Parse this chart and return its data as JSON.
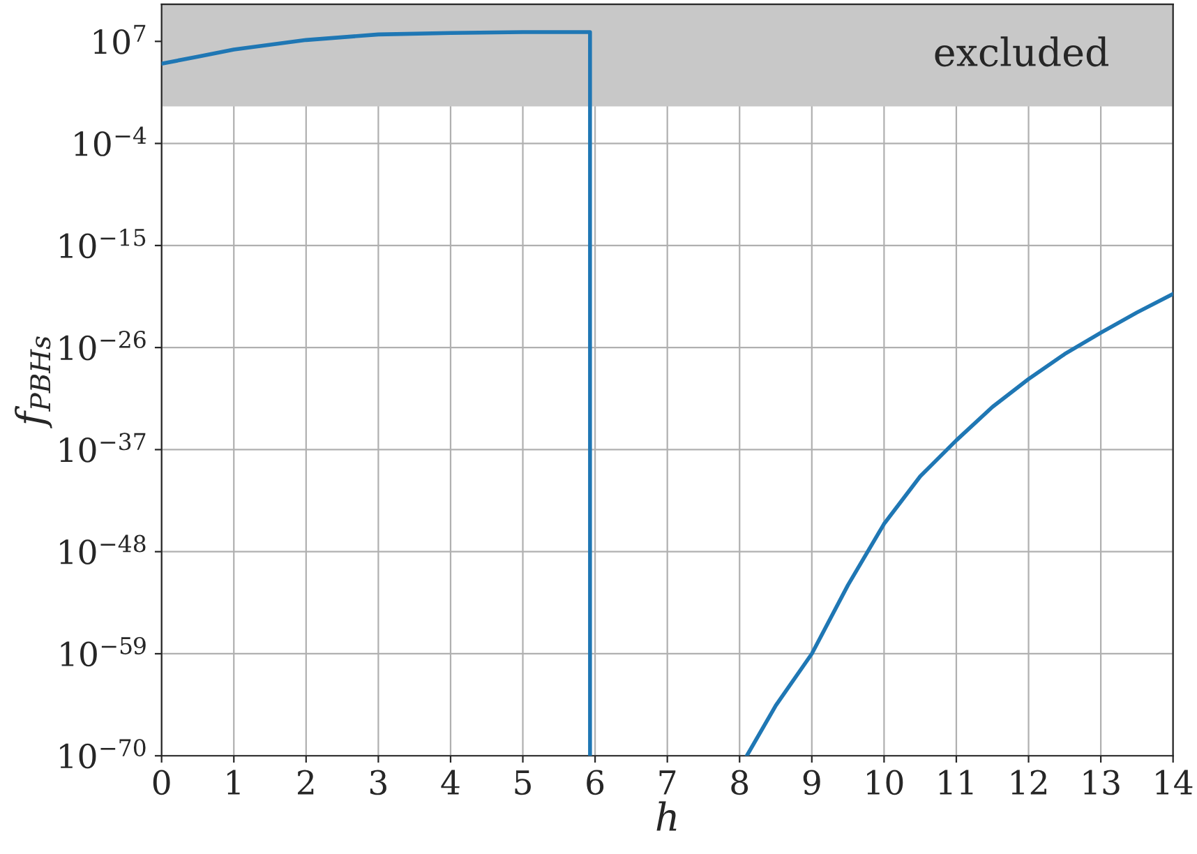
{
  "chart_data": {
    "type": "line",
    "xlabel": "h",
    "ylabel": "f$_{PBHs}$",
    "log": "y",
    "grid": true,
    "xlim": [
      0,
      14
    ],
    "xticks": [
      0,
      1,
      2,
      3,
      4,
      5,
      6,
      7,
      8,
      9,
      10,
      11,
      12,
      13,
      14
    ],
    "ylim": [
      1e-70,
      100000000000.0
    ],
    "yticks": [
      {
        "value": 1e-70,
        "label": "10$^{−70}$"
      },
      {
        "value": 1e-59,
        "label": "10$^{−59}$"
      },
      {
        "value": 1e-48,
        "label": "10$^{−48}$"
      },
      {
        "value": 1e-37,
        "label": "10$^{−37}$"
      },
      {
        "value": 1e-26,
        "label": "10$^{−26}$"
      },
      {
        "value": 1e-15,
        "label": "10$^{−15}$"
      },
      {
        "value": 0.0001,
        "label": "10$^{−4}$"
      },
      {
        "value": 10000000.0,
        "label": "10$^{7}$"
      }
    ],
    "bands": [
      {
        "axis": "y",
        "from": 1,
        "to": 100000000000.0,
        "label": "excluded",
        "color": "#c8c8c8"
      }
    ],
    "series": [
      {
        "color": "#1f77b4",
        "x": [
          0,
          0.5,
          1,
          2,
          3,
          4,
          5,
          5.93,
          5.93,
          7,
          8.1,
          8.5,
          9,
          9.5,
          10,
          10.5,
          11,
          11.5,
          12,
          12.5,
          13,
          13.5,
          14
        ],
        "values": [
          40000.0,
          220000.0,
          1300000.0,
          14000000.0,
          56000000.0,
          80000000.0,
          100000000.0,
          100000000.0,
          1e-70,
          null,
          1e-70,
          2.5e-65,
          1e-59,
          2.5e-52,
          1e-45,
          1.3e-40,
          1e-36,
          4e-33,
          4e-30,
          2e-27,
          4e-25,
          6e-23,
          6e-21
        ]
      }
    ]
  }
}
